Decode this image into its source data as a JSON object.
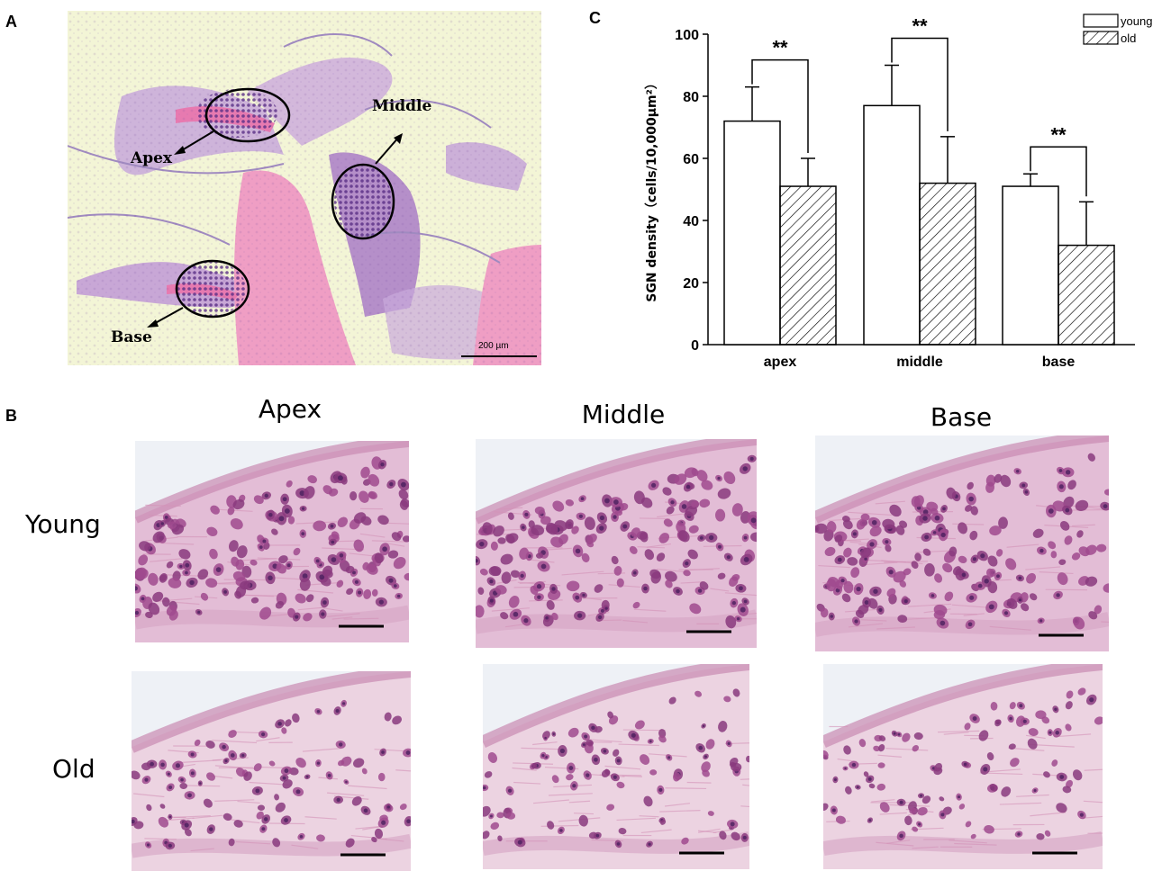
{
  "panels": {
    "a": {
      "letter": "A",
      "labels": {
        "apex": "Apex",
        "middle": "Middle",
        "base": "Base"
      },
      "scalebar": "200 µm",
      "colors": {
        "background": "#f3f5d6",
        "tissue": "#b48ccc",
        "bone": "#ef9ec4"
      }
    },
    "b": {
      "letter": "B",
      "columns": [
        "Apex",
        "Middle",
        "Base"
      ],
      "rows": [
        "Young",
        "Old"
      ]
    },
    "c": {
      "letter": "C"
    }
  },
  "chart_data": {
    "type": "bar",
    "categories": [
      "apex",
      "middle",
      "base"
    ],
    "series": [
      {
        "name": "young",
        "values": [
          72,
          77,
          51
        ],
        "errors": [
          11,
          13,
          4
        ],
        "pattern": "open"
      },
      {
        "name": "old",
        "values": [
          51,
          52,
          32
        ],
        "errors": [
          9,
          15,
          14
        ],
        "pattern": "hatched"
      }
    ],
    "ylabel": "SGN density（cells/10,000μm²）",
    "xlabel": "",
    "ylim": [
      0,
      100
    ],
    "yticks": [
      0,
      20,
      40,
      60,
      80,
      100
    ],
    "significance": [
      {
        "category": "apex",
        "label": "**"
      },
      {
        "category": "middle",
        "label": "**"
      },
      {
        "category": "base",
        "label": "**"
      }
    ],
    "legend": {
      "placement": "top-right"
    },
    "grid": false
  }
}
